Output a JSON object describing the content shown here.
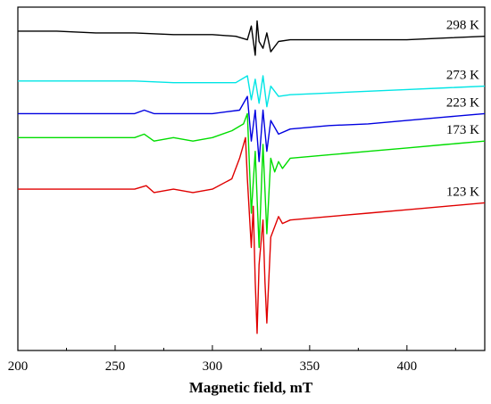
{
  "chart_data": {
    "type": "line",
    "title": "",
    "xlabel": "Magnetic field, mT",
    "ylabel": "",
    "xlim": [
      200,
      440
    ],
    "xticks": [
      200,
      250,
      300,
      350,
      400
    ],
    "grid": false,
    "legend": "none",
    "series": [
      {
        "name": "298 K",
        "color": "#000000",
        "x": [
          200,
          220,
          240,
          260,
          280,
          300,
          312,
          318,
          320,
          322,
          323,
          324,
          326,
          328,
          330,
          334,
          340,
          360,
          380,
          400,
          420,
          440
        ],
        "y": [
          0.93,
          0.93,
          0.925,
          0.925,
          0.92,
          0.92,
          0.915,
          0.905,
          0.945,
          0.86,
          0.96,
          0.9,
          0.88,
          0.925,
          0.87,
          0.9,
          0.905,
          0.905,
          0.905,
          0.905,
          0.91,
          0.915
        ]
      },
      {
        "name": "273 K",
        "color": "#00e5e5",
        "x": [
          200,
          220,
          240,
          260,
          280,
          300,
          312,
          318,
          320,
          322,
          324,
          326,
          328,
          330,
          334,
          340,
          360,
          380,
          400,
          420,
          440
        ],
        "y": [
          0.785,
          0.785,
          0.785,
          0.785,
          0.78,
          0.78,
          0.78,
          0.8,
          0.73,
          0.79,
          0.72,
          0.8,
          0.71,
          0.77,
          0.74,
          0.745,
          0.75,
          0.755,
          0.76,
          0.765,
          0.77
        ]
      },
      {
        "name": "223 K",
        "color": "#0000e0",
        "x": [
          200,
          220,
          240,
          260,
          265,
          270,
          280,
          300,
          314,
          318,
          320,
          322,
          324,
          326,
          328,
          330,
          334,
          340,
          360,
          380,
          400,
          420,
          440
        ],
        "y": [
          0.69,
          0.69,
          0.69,
          0.69,
          0.7,
          0.69,
          0.69,
          0.69,
          0.7,
          0.74,
          0.61,
          0.7,
          0.55,
          0.7,
          0.58,
          0.67,
          0.63,
          0.645,
          0.655,
          0.66,
          0.67,
          0.68,
          0.69
        ]
      },
      {
        "name": "173 K",
        "color": "#00dd00",
        "x": [
          200,
          220,
          240,
          260,
          265,
          270,
          280,
          290,
          300,
          310,
          316,
          318,
          320,
          322,
          324,
          326,
          328,
          330,
          332,
          334,
          336,
          340,
          360,
          380,
          400,
          420,
          440
        ],
        "y": [
          0.62,
          0.62,
          0.62,
          0.62,
          0.63,
          0.61,
          0.62,
          0.61,
          0.62,
          0.64,
          0.66,
          0.69,
          0.4,
          0.58,
          0.3,
          0.6,
          0.34,
          0.56,
          0.52,
          0.55,
          0.53,
          0.56,
          0.57,
          0.58,
          0.59,
          0.6,
          0.61
        ]
      },
      {
        "name": "123 K",
        "color": "#e00000",
        "x": [
          200,
          220,
          240,
          260,
          266,
          270,
          280,
          290,
          300,
          310,
          314,
          317,
          318,
          320,
          321,
          322,
          323,
          324,
          326,
          327,
          328,
          330,
          334,
          336,
          340,
          360,
          380,
          400,
          420,
          440
        ],
        "y": [
          0.47,
          0.47,
          0.47,
          0.47,
          0.48,
          0.46,
          0.47,
          0.46,
          0.47,
          0.5,
          0.56,
          0.62,
          0.5,
          0.3,
          0.42,
          0.2,
          0.05,
          0.25,
          0.38,
          0.2,
          0.08,
          0.33,
          0.39,
          0.37,
          0.38,
          0.39,
          0.4,
          0.41,
          0.42,
          0.43
        ]
      }
    ]
  }
}
